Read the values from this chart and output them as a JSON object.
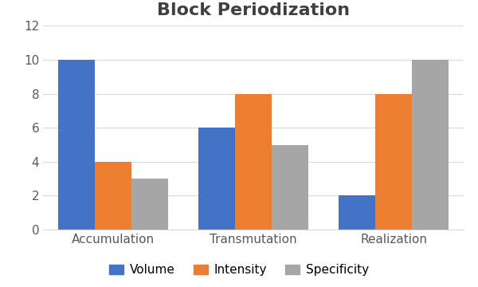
{
  "title": "Block Periodization",
  "categories": [
    "Accumulation",
    "Transmutation",
    "Realization"
  ],
  "series": {
    "Volume": [
      10,
      6,
      2
    ],
    "Intensity": [
      4,
      8,
      8
    ],
    "Specificity": [
      3,
      5,
      10
    ]
  },
  "colors": {
    "Volume": "#4472C4",
    "Intensity": "#ED7D31",
    "Specificity": "#A6A6A6"
  },
  "ylim": [
    0,
    12
  ],
  "yticks": [
    0,
    2,
    4,
    6,
    8,
    10,
    12
  ],
  "title_fontsize": 16,
  "title_fontweight": "bold",
  "bar_width": 0.26,
  "legend_ncol": 3,
  "background_color": "#FFFFFF",
  "grid_color": "#D9D9D9",
  "tick_label_fontsize": 11,
  "legend_fontsize": 11
}
